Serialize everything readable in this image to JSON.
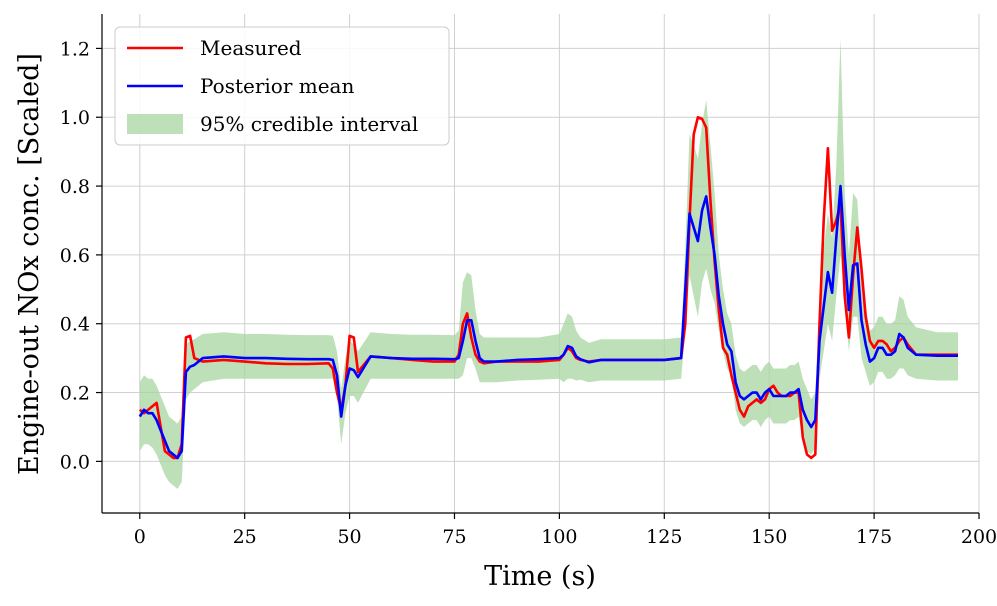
{
  "chart_data": {
    "type": "line",
    "title": "",
    "xlabel": "Time (s)",
    "ylabel": "Engine-out NOx conc. [Scaled]",
    "xlim": [
      -9,
      200
    ],
    "ylim": [
      -0.15,
      1.3
    ],
    "xticks": [
      0,
      25,
      50,
      75,
      100,
      125,
      150,
      175,
      200
    ],
    "yticks": [
      0.0,
      0.2,
      0.4,
      0.6,
      0.8,
      1.0,
      1.2
    ],
    "xtick_labels": [
      "0",
      "25",
      "50",
      "75",
      "100",
      "125",
      "150",
      "175",
      "200"
    ],
    "ytick_labels": [
      "0.0",
      "0.2",
      "0.4",
      "0.6",
      "0.8",
      "1.0",
      "1.2"
    ],
    "grid": true,
    "legend_position": "top-left",
    "legend": [
      "Measured",
      "Posterior mean",
      "95% credible interval"
    ],
    "colors": {
      "measured": "#ff0000",
      "posterior": "#0000ff",
      "band": "#a8d5a2"
    },
    "x": [
      0,
      1,
      2,
      3,
      4,
      5,
      6,
      7,
      8,
      9,
      10,
      11,
      12,
      13,
      15,
      20,
      25,
      30,
      35,
      40,
      45,
      46,
      47,
      48,
      49,
      50,
      51,
      52,
      55,
      60,
      65,
      70,
      75,
      76,
      77,
      78,
      79,
      80,
      81,
      82,
      85,
      90,
      95,
      100,
      101,
      102,
      103,
      104,
      105,
      107,
      110,
      115,
      120,
      125,
      129,
      130,
      131,
      132,
      133,
      134,
      135,
      136,
      137,
      138,
      139,
      140,
      141,
      142,
      143,
      144,
      145,
      146,
      147,
      148,
      149,
      150,
      151,
      152,
      153,
      154,
      155,
      156,
      157,
      158,
      159,
      160,
      161,
      162,
      163,
      164,
      165,
      166,
      167,
      168,
      169,
      170,
      171,
      172,
      173,
      174,
      175,
      176,
      177,
      178,
      179,
      180,
      181,
      182,
      183,
      185,
      190,
      195
    ],
    "series": [
      {
        "name": "Measured",
        "values": [
          0.15,
          0.14,
          0.15,
          0.16,
          0.17,
          0.1,
          0.03,
          0.02,
          0.01,
          0.01,
          0.05,
          0.36,
          0.365,
          0.3,
          0.29,
          0.295,
          0.29,
          0.285,
          0.283,
          0.283,
          0.285,
          0.27,
          0.2,
          0.15,
          0.22,
          0.365,
          0.36,
          0.26,
          0.305,
          0.3,
          0.295,
          0.29,
          0.29,
          0.31,
          0.4,
          0.43,
          0.36,
          0.31,
          0.29,
          0.285,
          0.29,
          0.29,
          0.29,
          0.295,
          0.31,
          0.33,
          0.32,
          0.3,
          0.295,
          0.29,
          0.295,
          0.295,
          0.295,
          0.295,
          0.3,
          0.4,
          0.7,
          0.95,
          1.0,
          0.995,
          0.97,
          0.76,
          0.58,
          0.44,
          0.33,
          0.31,
          0.25,
          0.2,
          0.15,
          0.13,
          0.16,
          0.17,
          0.18,
          0.17,
          0.18,
          0.21,
          0.22,
          0.2,
          0.19,
          0.19,
          0.19,
          0.2,
          0.2,
          0.07,
          0.02,
          0.01,
          0.02,
          0.4,
          0.7,
          0.91,
          0.67,
          0.7,
          0.75,
          0.48,
          0.36,
          0.54,
          0.68,
          0.56,
          0.42,
          0.35,
          0.33,
          0.35,
          0.35,
          0.34,
          0.32,
          0.33,
          0.35,
          0.36,
          0.34,
          0.31,
          0.31,
          0.31
        ]
      },
      {
        "name": "Posterior mean",
        "values": [
          0.13,
          0.15,
          0.14,
          0.14,
          0.12,
          0.09,
          0.06,
          0.03,
          0.02,
          0.01,
          0.03,
          0.26,
          0.275,
          0.28,
          0.3,
          0.305,
          0.3,
          0.3,
          0.298,
          0.297,
          0.297,
          0.295,
          0.25,
          0.13,
          0.22,
          0.27,
          0.265,
          0.245,
          0.305,
          0.3,
          0.298,
          0.298,
          0.297,
          0.3,
          0.35,
          0.41,
          0.41,
          0.35,
          0.3,
          0.29,
          0.29,
          0.295,
          0.297,
          0.3,
          0.31,
          0.335,
          0.33,
          0.305,
          0.297,
          0.288,
          0.295,
          0.295,
          0.295,
          0.295,
          0.3,
          0.5,
          0.72,
          0.68,
          0.64,
          0.73,
          0.77,
          0.68,
          0.6,
          0.48,
          0.4,
          0.34,
          0.32,
          0.23,
          0.19,
          0.18,
          0.19,
          0.2,
          0.2,
          0.18,
          0.2,
          0.21,
          0.19,
          0.19,
          0.19,
          0.19,
          0.2,
          0.2,
          0.21,
          0.15,
          0.12,
          0.1,
          0.12,
          0.35,
          0.45,
          0.55,
          0.49,
          0.65,
          0.8,
          0.6,
          0.44,
          0.57,
          0.575,
          0.41,
          0.34,
          0.29,
          0.3,
          0.33,
          0.33,
          0.31,
          0.31,
          0.32,
          0.37,
          0.36,
          0.33,
          0.31,
          0.307,
          0.307
        ]
      }
    ],
    "band": {
      "name": "95% credible interval",
      "lower": [
        0.03,
        0.05,
        0.05,
        0.04,
        0.02,
        -0.01,
        -0.04,
        -0.06,
        -0.07,
        -0.08,
        -0.06,
        0.18,
        0.2,
        0.21,
        0.23,
        0.24,
        0.24,
        0.24,
        0.24,
        0.24,
        0.24,
        0.24,
        0.19,
        0.05,
        0.14,
        0.19,
        0.19,
        0.17,
        0.24,
        0.24,
        0.24,
        0.24,
        0.24,
        0.24,
        0.25,
        0.3,
        0.3,
        0.27,
        0.23,
        0.23,
        0.23,
        0.235,
        0.237,
        0.24,
        0.23,
        0.24,
        0.24,
        0.235,
        0.237,
        0.23,
        0.235,
        0.235,
        0.235,
        0.235,
        0.24,
        0.38,
        0.54,
        0.48,
        0.42,
        0.52,
        0.56,
        0.5,
        0.46,
        0.38,
        0.32,
        0.27,
        0.25,
        0.15,
        0.11,
        0.1,
        0.11,
        0.12,
        0.12,
        0.1,
        0.12,
        0.13,
        0.11,
        0.11,
        0.11,
        0.11,
        0.12,
        0.12,
        0.13,
        0.06,
        0.03,
        0.02,
        0.04,
        0.24,
        0.32,
        0.4,
        0.35,
        0.48,
        0.6,
        0.46,
        0.32,
        0.42,
        0.42,
        0.3,
        0.26,
        0.22,
        0.23,
        0.26,
        0.26,
        0.24,
        0.24,
        0.25,
        0.27,
        0.27,
        0.25,
        0.24,
        0.235,
        0.235
      ],
      "upper": [
        0.23,
        0.25,
        0.24,
        0.24,
        0.22,
        0.19,
        0.16,
        0.13,
        0.12,
        0.11,
        0.13,
        0.34,
        0.35,
        0.355,
        0.37,
        0.375,
        0.37,
        0.37,
        0.368,
        0.367,
        0.367,
        0.365,
        0.32,
        0.21,
        0.3,
        0.35,
        0.34,
        0.32,
        0.375,
        0.37,
        0.368,
        0.368,
        0.367,
        0.38,
        0.52,
        0.55,
        0.54,
        0.44,
        0.37,
        0.36,
        0.36,
        0.36,
        0.36,
        0.37,
        0.4,
        0.43,
        0.42,
        0.38,
        0.36,
        0.345,
        0.355,
        0.355,
        0.355,
        0.355,
        0.36,
        0.62,
        0.95,
        0.92,
        0.88,
        0.98,
        1.05,
        0.92,
        0.78,
        0.6,
        0.5,
        0.43,
        0.4,
        0.31,
        0.27,
        0.26,
        0.27,
        0.28,
        0.28,
        0.26,
        0.28,
        0.29,
        0.27,
        0.27,
        0.27,
        0.27,
        0.28,
        0.28,
        0.29,
        0.24,
        0.21,
        0.18,
        0.2,
        0.48,
        0.62,
        0.72,
        0.65,
        0.86,
        1.23,
        0.78,
        0.6,
        0.78,
        0.76,
        0.56,
        0.45,
        0.38,
        0.39,
        0.42,
        0.42,
        0.4,
        0.4,
        0.41,
        0.48,
        0.47,
        0.42,
        0.39,
        0.375,
        0.375
      ]
    }
  }
}
